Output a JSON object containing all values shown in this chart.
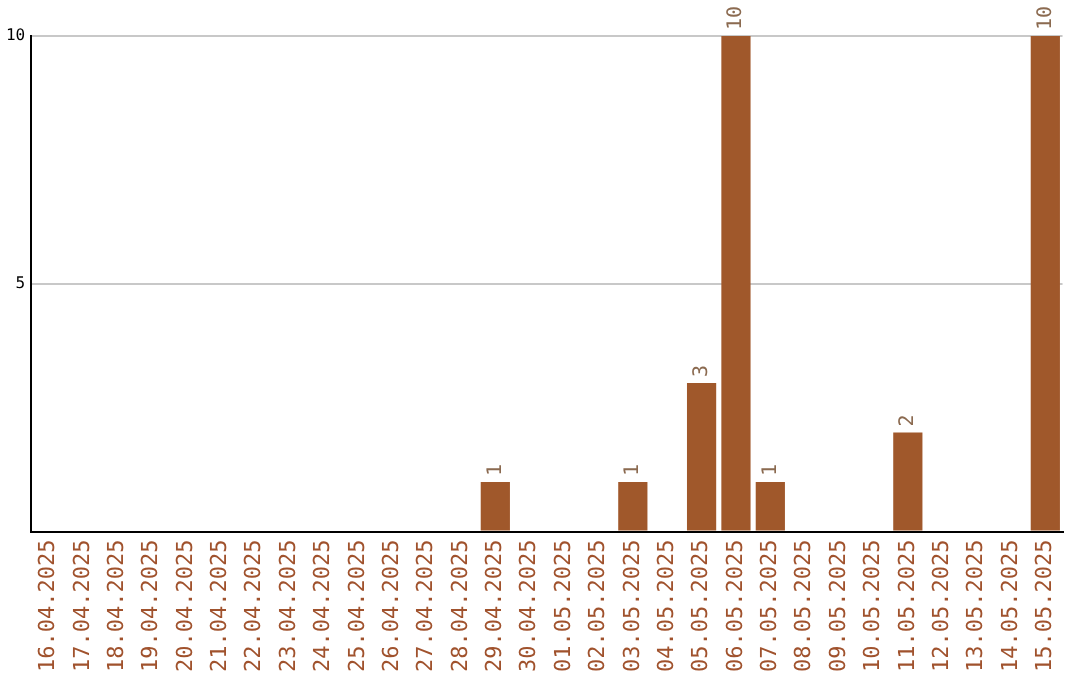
{
  "chart_data": {
    "type": "bar",
    "categories": [
      "16.04.2025",
      "17.04.2025",
      "18.04.2025",
      "19.04.2025",
      "20.04.2025",
      "21.04.2025",
      "22.04.2025",
      "23.04.2025",
      "24.04.2025",
      "25.04.2025",
      "26.04.2025",
      "27.04.2025",
      "28.04.2025",
      "29.04.2025",
      "30.04.2025",
      "01.05.2025",
      "02.05.2025",
      "03.05.2025",
      "04.05.2025",
      "05.05.2025",
      "06.05.2025",
      "07.05.2025",
      "08.05.2025",
      "09.05.2025",
      "10.05.2025",
      "11.05.2025",
      "12.05.2025",
      "13.05.2025",
      "14.05.2025",
      "15.05.2025"
    ],
    "values": [
      0,
      0,
      0,
      0,
      0,
      0,
      0,
      0,
      0,
      0,
      0,
      0,
      0,
      1,
      0,
      0,
      0,
      1,
      0,
      3,
      10,
      1,
      0,
      0,
      0,
      2,
      0,
      0,
      0,
      10
    ],
    "value_labels": [
      null,
      null,
      null,
      null,
      null,
      null,
      null,
      null,
      null,
      null,
      null,
      null,
      null,
      "1",
      null,
      null,
      null,
      "1",
      null,
      "3",
      "10",
      "1",
      null,
      null,
      null,
      "2",
      null,
      null,
      null,
      "10"
    ],
    "color": "#a0582b",
    "ylim": [
      0,
      10
    ],
    "yticks": [
      {
        "value": 0,
        "label": null
      },
      5,
      10
    ],
    "grid": "y",
    "legend": false
  }
}
